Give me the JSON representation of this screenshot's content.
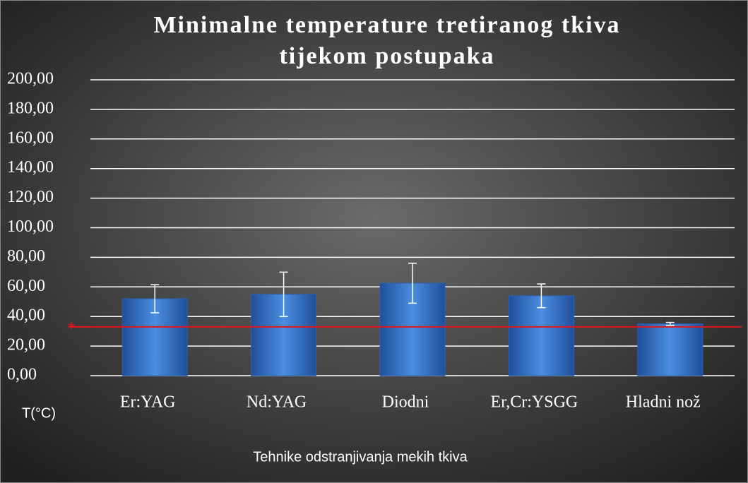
{
  "chart_data": {
    "type": "bar",
    "title": [
      "Minimalne temperature tretiranog tkiva",
      "tijekom postupaka"
    ],
    "categories": [
      "Er:YAG",
      "Nd:YAG",
      "Diodni",
      "Er,Cr:YSGG",
      "Hladni nož"
    ],
    "values": [
      52,
      55,
      62.5,
      54,
      35
    ],
    "errors": [
      9.5,
      15,
      13.5,
      8,
      1
    ],
    "color": "#3f7fd0",
    "ylim": [
      0,
      200
    ],
    "yticks": [
      {
        "value": 0,
        "label": "0,00"
      },
      {
        "value": 20,
        "label": "20,00"
      },
      {
        "value": 40,
        "label": "40,00"
      },
      {
        "value": 60,
        "label": "60,00"
      },
      {
        "value": 80,
        "label": "80,00"
      },
      {
        "value": 100,
        "label": "100,00"
      },
      {
        "value": 120,
        "label": "120,00"
      },
      {
        "value": 140,
        "label": "140,00"
      },
      {
        "value": 160,
        "label": "160,00"
      },
      {
        "value": 180,
        "label": "180,00"
      },
      {
        "value": 200,
        "label": "200,00"
      }
    ],
    "grid": true,
    "y_label": "T(°C)",
    "x_label": "Tehnike odstranjivanja mekih tkiva",
    "reference_line": {
      "value": 33,
      "label": "*",
      "color": "#e0161b"
    }
  }
}
